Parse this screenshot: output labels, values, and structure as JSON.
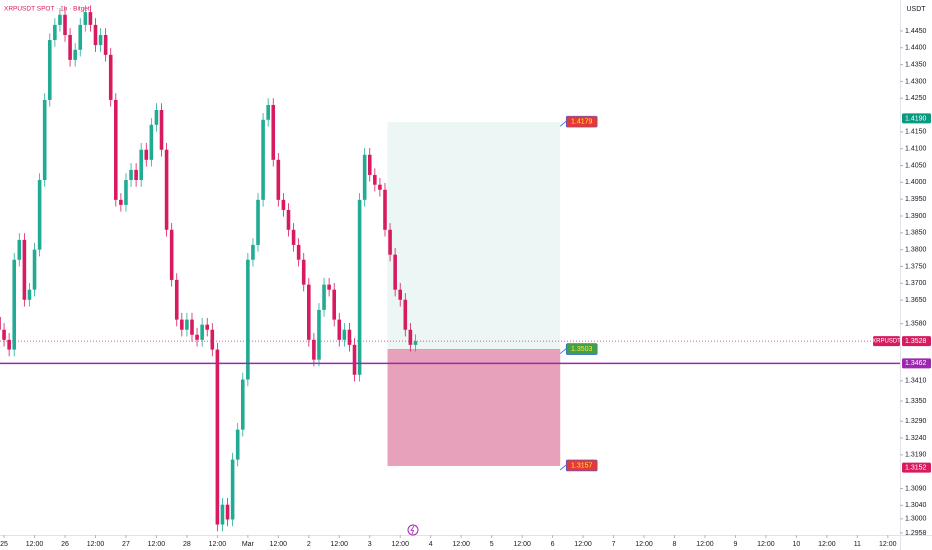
{
  "chart_data": {
    "type": "candlestick",
    "title": "XRPUSDT SPOT · 1h · Bitget",
    "currency": "USDT",
    "x": [
      -2,
      0,
      2,
      4,
      6,
      8,
      10,
      12,
      14,
      16,
      18,
      20,
      22,
      24,
      26,
      28,
      30,
      32,
      34,
      36,
      38,
      40,
      42,
      44,
      46,
      48,
      50,
      52,
      54,
      56,
      58,
      60,
      62,
      64,
      66,
      68,
      70,
      72,
      74,
      76,
      78,
      80,
      82,
      84,
      86,
      88,
      90,
      92,
      94,
      96,
      98,
      100,
      102,
      104,
      106,
      108,
      110,
      112,
      114,
      116,
      118,
      120,
      122,
      124,
      126,
      128,
      130,
      132,
      134,
      136,
      138,
      140,
      142,
      144,
      146,
      148,
      150,
      152,
      154,
      156,
      158,
      160,
      162
    ],
    "open": [
      1.36,
      1.3562,
      1.3532,
      1.3503,
      1.377,
      1.3829,
      1.3651,
      1.3681,
      1.38,
      1.4007,
      1.4245,
      1.4423,
      1.4468,
      1.4498,
      1.4438,
      1.4364,
      1.4394,
      1.4468,
      1.4506,
      1.4468,
      1.4408,
      1.4438,
      1.4379,
      1.4245,
      1.3948,
      1.3933,
      1.4007,
      1.4037,
      1.4007,
      1.4097,
      1.4067,
      1.4171,
      1.4215,
      1.4097,
      1.3859,
      1.371,
      1.3592,
      1.3562,
      1.3592,
      1.3547,
      1.3532,
      1.3577,
      1.3562,
      1.3503,
      1.2983,
      1.3042,
      1.2998,
      1.3176,
      1.3265,
      1.3414,
      1.377,
      1.3814,
      1.3948,
      1.4186,
      1.423,
      1.4067,
      1.3948,
      1.3918,
      1.3859,
      1.3814,
      1.377,
      1.3696,
      1.3532,
      1.3473,
      1.3621,
      1.3696,
      1.3681,
      1.3592,
      1.3532,
      1.3562,
      1.3517,
      1.3428,
      1.3948,
      1.4082,
      1.4022,
      1.3993,
      1.3978,
      1.3859,
      1.3785,
      1.3681,
      1.3651,
      1.3562,
      1.3517
    ],
    "high": [
      1.362,
      1.3582,
      1.3552,
      1.379,
      1.3849,
      1.3849,
      1.3701,
      1.382,
      1.4027,
      1.4265,
      1.4443,
      1.4488,
      1.4518,
      1.4518,
      1.4458,
      1.4414,
      1.4488,
      1.4526,
      1.4526,
      1.4488,
      1.4458,
      1.4458,
      1.4399,
      1.4265,
      1.3968,
      1.4027,
      1.4057,
      1.4057,
      1.4117,
      1.4117,
      1.4191,
      1.4235,
      1.4235,
      1.4117,
      1.3879,
      1.373,
      1.3612,
      1.3612,
      1.3612,
      1.3567,
      1.3597,
      1.3597,
      1.3582,
      1.3523,
      1.3062,
      1.3062,
      1.3196,
      1.3285,
      1.3434,
      1.379,
      1.3834,
      1.3968,
      1.4206,
      1.425,
      1.425,
      1.4087,
      1.3968,
      1.3938,
      1.3879,
      1.3834,
      1.379,
      1.3716,
      1.3552,
      1.3641,
      1.3716,
      1.3716,
      1.3701,
      1.3612,
      1.3582,
      1.3582,
      1.3537,
      1.3968,
      1.4102,
      1.4102,
      1.4042,
      1.4013,
      1.3998,
      1.3879,
      1.3805,
      1.3701,
      1.3671,
      1.3582,
      1.3548
    ],
    "low": [
      1.3542,
      1.3512,
      1.3483,
      1.3483,
      1.375,
      1.3631,
      1.3631,
      1.3661,
      1.378,
      1.3987,
      1.4225,
      1.4403,
      1.4448,
      1.4418,
      1.4344,
      1.4344,
      1.4374,
      1.4448,
      1.4448,
      1.4388,
      1.4388,
      1.4359,
      1.4225,
      1.3928,
      1.3913,
      1.3913,
      1.3987,
      1.3987,
      1.3987,
      1.4047,
      1.4047,
      1.4151,
      1.4077,
      1.3839,
      1.369,
      1.3572,
      1.3542,
      1.3542,
      1.3527,
      1.3512,
      1.3512,
      1.3542,
      1.3483,
      1.2963,
      1.2963,
      1.2978,
      1.2978,
      1.3156,
      1.3245,
      1.3394,
      1.375,
      1.3794,
      1.3928,
      1.4166,
      1.4047,
      1.3928,
      1.3898,
      1.3839,
      1.3794,
      1.375,
      1.3676,
      1.3512,
      1.3453,
      1.3453,
      1.3601,
      1.3661,
      1.3572,
      1.3512,
      1.3512,
      1.3497,
      1.3408,
      1.3408,
      1.3928,
      1.4002,
      1.3973,
      1.3958,
      1.3839,
      1.3765,
      1.3661,
      1.3631,
      1.3542,
      1.3497,
      1.3497
    ],
    "close": [
      1.3562,
      1.3532,
      1.3503,
      1.377,
      1.3829,
      1.3651,
      1.3681,
      1.38,
      1.4007,
      1.4245,
      1.4423,
      1.4468,
      1.4498,
      1.4438,
      1.4364,
      1.4394,
      1.4468,
      1.4506,
      1.4468,
      1.4408,
      1.4438,
      1.4379,
      1.4245,
      1.3948,
      1.3933,
      1.4007,
      1.4037,
      1.4007,
      1.4097,
      1.4067,
      1.4171,
      1.4215,
      1.4097,
      1.3859,
      1.371,
      1.3592,
      1.3562,
      1.3592,
      1.3547,
      1.3532,
      1.3577,
      1.3562,
      1.3503,
      1.2983,
      1.3042,
      1.2998,
      1.3176,
      1.3265,
      1.3414,
      1.377,
      1.3814,
      1.3948,
      1.4186,
      1.423,
      1.4067,
      1.3948,
      1.3918,
      1.3859,
      1.3814,
      1.377,
      1.3696,
      1.3532,
      1.3473,
      1.3621,
      1.3696,
      1.3681,
      1.3592,
      1.3532,
      1.3562,
      1.3517,
      1.3428,
      1.3948,
      1.4082,
      1.4022,
      1.3993,
      1.3978,
      1.3859,
      1.3785,
      1.3681,
      1.3651,
      1.3562,
      1.3517,
      1.3528
    ],
    "up_color": "#22ab94",
    "down_color": "#d81b60",
    "xlim": [
      -1.6,
      352.8
    ],
    "xticks": [
      {
        "value": 0,
        "label": "25"
      },
      {
        "value": 12,
        "label": "12:00"
      },
      {
        "value": 24,
        "label": "26"
      },
      {
        "value": 36,
        "label": "12:00"
      },
      {
        "value": 48,
        "label": "27"
      },
      {
        "value": 60,
        "label": "12:00"
      },
      {
        "value": 72,
        "label": "28"
      },
      {
        "value": 84,
        "label": "12:00"
      },
      {
        "value": 96,
        "label": "Mar"
      },
      {
        "value": 108,
        "label": "12:00"
      },
      {
        "value": 120,
        "label": "2"
      },
      {
        "value": 132,
        "label": "12:00"
      },
      {
        "value": 144,
        "label": "3"
      },
      {
        "value": 156,
        "label": "12:00"
      },
      {
        "value": 168,
        "label": "4"
      },
      {
        "value": 180,
        "label": "12:00"
      },
      {
        "value": 192,
        "label": "5"
      },
      {
        "value": 204,
        "label": "12:00"
      },
      {
        "value": 216,
        "label": "6"
      },
      {
        "value": 228,
        "label": "12:00"
      },
      {
        "value": 240,
        "label": "7"
      },
      {
        "value": 252,
        "label": "12:00"
      },
      {
        "value": 264,
        "label": "8"
      },
      {
        "value": 276,
        "label": "12:00"
      },
      {
        "value": 288,
        "label": "9"
      },
      {
        "value": 300,
        "label": "12:00"
      },
      {
        "value": 312,
        "label": "10"
      },
      {
        "value": 324,
        "label": "12:00"
      },
      {
        "value": 336,
        "label": "11"
      },
      {
        "value": 348,
        "label": "12:00"
      }
    ],
    "ylim": [
      1.2937,
      1.4542
    ],
    "yticks": [
      {
        "value": 1.445,
        "label": "1.4450"
      },
      {
        "value": 1.44,
        "label": "1.4400"
      },
      {
        "value": 1.435,
        "label": "1.4350"
      },
      {
        "value": 1.43,
        "label": "1.4300"
      },
      {
        "value": 1.425,
        "label": "1.4250"
      },
      {
        "value": 1.415,
        "label": "1.4150"
      },
      {
        "value": 1.41,
        "label": "1.4100"
      },
      {
        "value": 1.405,
        "label": "1.4050"
      },
      {
        "value": 1.4,
        "label": "1.4000"
      },
      {
        "value": 1.395,
        "label": "1.3950"
      },
      {
        "value": 1.39,
        "label": "1.3900"
      },
      {
        "value": 1.385,
        "label": "1.3850"
      },
      {
        "value": 1.38,
        "label": "1.3800"
      },
      {
        "value": 1.375,
        "label": "1.3750"
      },
      {
        "value": 1.37,
        "label": "1.3700"
      },
      {
        "value": 1.365,
        "label": "1.3650"
      },
      {
        "value": 1.358,
        "label": "1.3580"
      },
      {
        "value": 1.341,
        "label": "1.3410"
      },
      {
        "value": 1.335,
        "label": "1.3350"
      },
      {
        "value": 1.329,
        "label": "1.3290"
      },
      {
        "value": 1.324,
        "label": "1.3240"
      },
      {
        "value": 1.319,
        "label": "1.3190"
      },
      {
        "value": 1.309,
        "label": "1.3090"
      },
      {
        "value": 1.304,
        "label": "1.3040"
      },
      {
        "value": 1.3,
        "label": "1.3000"
      },
      1.2958
    ],
    "last_price": {
      "symbol": "XRPUSDT",
      "value": 1.3528,
      "color": "#d81b60"
    },
    "horizontal_line": {
      "value": 1.3462,
      "color": "#9c27b0"
    },
    "price_markers": [
      {
        "value": 1.419,
        "label": "1.4190",
        "color": "#089981"
      },
      {
        "value": 1.3152,
        "color": "#d81b60"
      }
    ],
    "position": {
      "x_range": [
        151,
        219
      ],
      "target": 1.4179,
      "entry": 1.3503,
      "stop": 1.3157
    }
  }
}
